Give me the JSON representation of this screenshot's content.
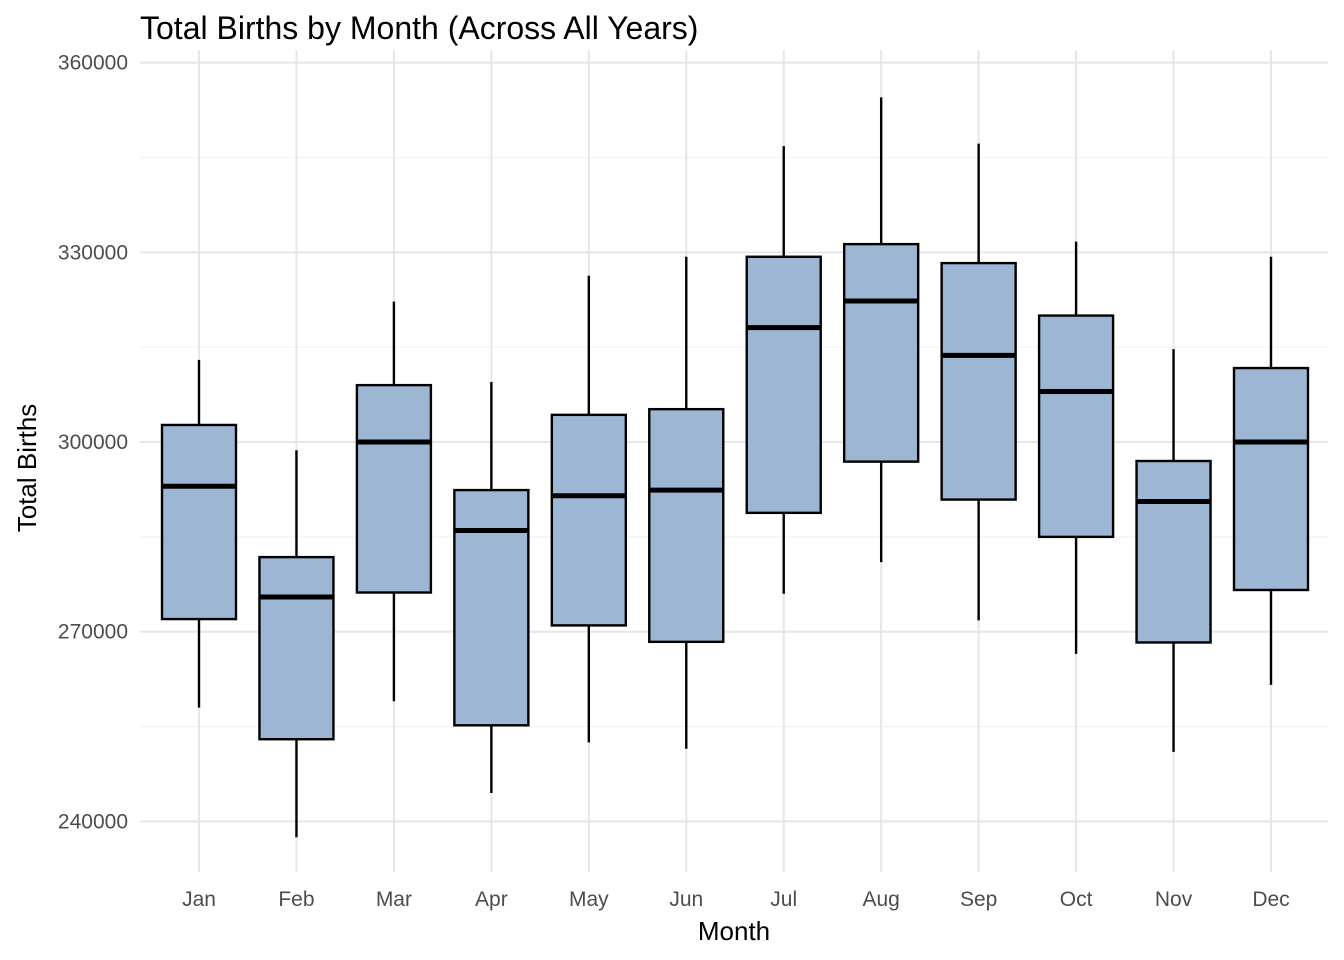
{
  "chart_data": {
    "type": "boxplot",
    "title": "Total Births by Month (Across All Years)",
    "xlabel": "Month",
    "ylabel": "Total Births",
    "ylim": [
      232000,
      362000
    ],
    "yticks": [
      240000,
      270000,
      300000,
      330000,
      360000
    ],
    "grid": true,
    "categories": [
      "Jan",
      "Feb",
      "Mar",
      "Apr",
      "May",
      "Jun",
      "Jul",
      "Aug",
      "Sep",
      "Oct",
      "Nov",
      "Dec"
    ],
    "boxes": [
      {
        "month": "Jan",
        "min": 258000,
        "q1": 272000,
        "median": 293000,
        "q3": 302700,
        "max": 313000
      },
      {
        "month": "Feb",
        "min": 237500,
        "q1": 253000,
        "median": 275500,
        "q3": 281800,
        "max": 298700
      },
      {
        "month": "Mar",
        "min": 259000,
        "q1": 276200,
        "median": 300000,
        "q3": 309000,
        "max": 322200
      },
      {
        "month": "Apr",
        "min": 244500,
        "q1": 255200,
        "median": 286000,
        "q3": 292400,
        "max": 309500
      },
      {
        "month": "May",
        "min": 252500,
        "q1": 271000,
        "median": 291500,
        "q3": 304300,
        "max": 326300
      },
      {
        "month": "Jun",
        "min": 251500,
        "q1": 268400,
        "median": 292400,
        "q3": 305200,
        "max": 329300
      },
      {
        "month": "Jul",
        "min": 276000,
        "q1": 288800,
        "median": 318100,
        "q3": 329300,
        "max": 346800
      },
      {
        "month": "Aug",
        "min": 281000,
        "q1": 296900,
        "median": 322300,
        "q3": 331300,
        "max": 354500
      },
      {
        "month": "Sep",
        "min": 271800,
        "q1": 290900,
        "median": 313700,
        "q3": 328300,
        "max": 347200
      },
      {
        "month": "Oct",
        "min": 266500,
        "q1": 285000,
        "median": 308000,
        "q3": 320000,
        "max": 331700
      },
      {
        "month": "Nov",
        "min": 251000,
        "q1": 268300,
        "median": 290600,
        "q3": 297000,
        "max": 314700
      },
      {
        "month": "Dec",
        "min": 261600,
        "q1": 276600,
        "median": 300000,
        "q3": 311700,
        "max": 329300
      }
    ],
    "colors": {
      "box_fill": "#9db6d4",
      "box_stroke": "#000000",
      "grid_major": "#e6e6e6",
      "grid_minor": "#f2f2f2",
      "text": "#000000",
      "tick_text": "#4d4d4d"
    }
  }
}
